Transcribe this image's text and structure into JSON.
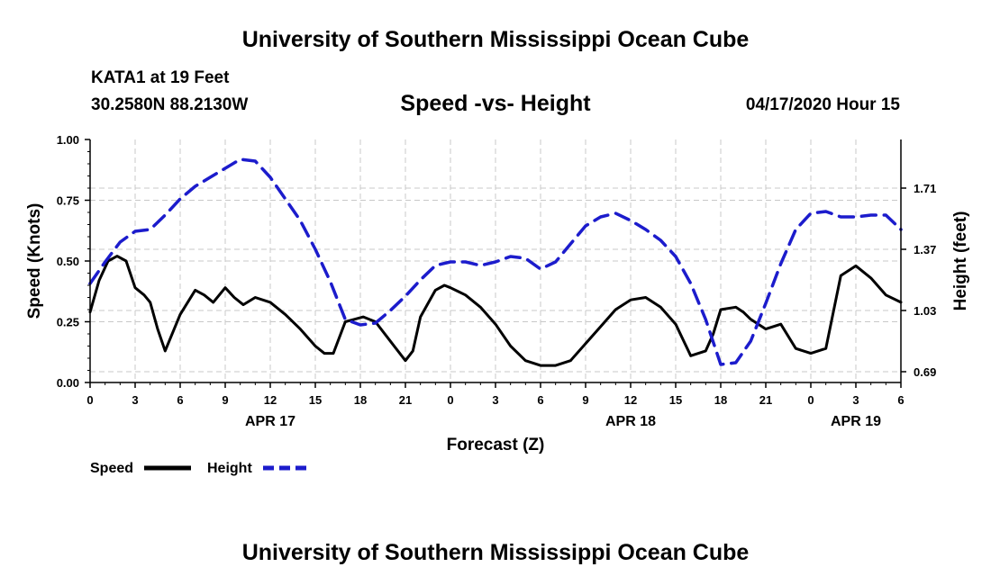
{
  "header": {
    "top_title": "University of Southern Mississippi Ocean Cube",
    "station": "KATA1 at 19 Feet",
    "coords": "30.2580N 88.2130W",
    "chart_title": "Speed -vs- Height",
    "run_time": "04/17/2020 Hour 15"
  },
  "footer": {
    "bottom_title": "University of Southern Mississippi Ocean Cube"
  },
  "chart_data": {
    "type": "line",
    "title": "Speed -vs- Height",
    "xlabel": "Forecast (Z)",
    "ylabel": "Speed (Knots)",
    "y2label": "Height (feet)",
    "x_unit": "forecast hours from APR 17 00Z",
    "xlim": [
      0,
      54
    ],
    "ylim": [
      0,
      1.0
    ],
    "y2lim": [
      0.63,
      1.98
    ],
    "x_ticks": [
      0,
      3,
      6,
      9,
      12,
      15,
      18,
      21,
      24,
      27,
      30,
      33,
      36,
      39,
      42,
      45,
      48,
      51,
      54
    ],
    "x_tick_labels": [
      "0",
      "3",
      "6",
      "9",
      "12",
      "15",
      "18",
      "21",
      "0",
      "3",
      "6",
      "9",
      "12",
      "15",
      "18",
      "21",
      "0",
      "3",
      "6"
    ],
    "y_ticks": [
      0,
      0.25,
      0.5,
      0.75,
      1.0
    ],
    "y_tick_labels": [
      "0.00",
      "0.25",
      "0.50",
      "0.75",
      "1.00"
    ],
    "y2_ticks": [
      0.69,
      1.03,
      1.37,
      1.71
    ],
    "y2_tick_labels": [
      "0.69",
      "1.03",
      "1.37",
      "1.71"
    ],
    "date_labels": [
      {
        "x": 12,
        "label": "APR 17"
      },
      {
        "x": 36,
        "label": "APR 18"
      },
      {
        "x": 51,
        "label": "APR 19"
      }
    ],
    "grid": true,
    "legend": "bottom-left",
    "series": [
      {
        "name": "Speed",
        "axis": "left",
        "color": "#000000",
        "style": "solid",
        "x": [
          0,
          0.6,
          1.2,
          1.8,
          2.4,
          3,
          3.6,
          4,
          4.5,
          5,
          6,
          7,
          7.6,
          8.2,
          9,
          9.6,
          10.2,
          11,
          12,
          13,
          14,
          15,
          15.6,
          16.2,
          17,
          17.6,
          18.2,
          19,
          20,
          21,
          21.5,
          22,
          23,
          23.6,
          24,
          25,
          26,
          27,
          28,
          29,
          30,
          31,
          32,
          33,
          34,
          35,
          36,
          37,
          38,
          39,
          40,
          41,
          41.5,
          42,
          43,
          43.5,
          44,
          45,
          46,
          47,
          48,
          49,
          50,
          51,
          52,
          53,
          54
        ],
        "values": [
          0.29,
          0.42,
          0.5,
          0.52,
          0.5,
          0.39,
          0.36,
          0.33,
          0.22,
          0.13,
          0.28,
          0.38,
          0.36,
          0.33,
          0.39,
          0.35,
          0.32,
          0.35,
          0.33,
          0.28,
          0.22,
          0.15,
          0.12,
          0.12,
          0.25,
          0.26,
          0.27,
          0.25,
          0.17,
          0.09,
          0.13,
          0.27,
          0.38,
          0.4,
          0.39,
          0.36,
          0.31,
          0.24,
          0.15,
          0.09,
          0.07,
          0.07,
          0.09,
          0.16,
          0.23,
          0.3,
          0.34,
          0.35,
          0.31,
          0.24,
          0.11,
          0.13,
          0.2,
          0.3,
          0.31,
          0.29,
          0.26,
          0.22,
          0.24,
          0.14,
          0.12,
          0.14,
          0.44,
          0.48,
          0.43,
          0.36,
          0.33
        ]
      },
      {
        "name": "Height",
        "axis": "right",
        "color": "#1c1ccc",
        "style": "dashed",
        "x": [
          0,
          1,
          2,
          3,
          4,
          5,
          6,
          7,
          8,
          9,
          10,
          11,
          12,
          13,
          14,
          15,
          16,
          17,
          18,
          19,
          20,
          21,
          22,
          23,
          24,
          25,
          26,
          27,
          28,
          29,
          30,
          31,
          32,
          33,
          34,
          35,
          36,
          37,
          38,
          39,
          40,
          41,
          42,
          43,
          44,
          45,
          46,
          47,
          48,
          49,
          50,
          51,
          52,
          53,
          54
        ],
        "values": [
          1.18,
          1.3,
          1.41,
          1.47,
          1.48,
          1.56,
          1.65,
          1.72,
          1.77,
          1.82,
          1.87,
          1.86,
          1.77,
          1.65,
          1.53,
          1.37,
          1.19,
          0.98,
          0.95,
          0.96,
          1.03,
          1.11,
          1.2,
          1.28,
          1.3,
          1.3,
          1.28,
          1.3,
          1.33,
          1.32,
          1.26,
          1.3,
          1.4,
          1.5,
          1.55,
          1.57,
          1.53,
          1.48,
          1.42,
          1.33,
          1.18,
          0.98,
          0.73,
          0.74,
          0.86,
          1.07,
          1.29,
          1.48,
          1.57,
          1.58,
          1.55,
          1.55,
          1.56,
          1.56,
          1.48
        ]
      }
    ]
  },
  "legend": {
    "speed_label": "Speed",
    "height_label": "Height"
  },
  "colors": {
    "speed": "#000000",
    "height": "#1c1ccc",
    "grid": "#c8c8c8"
  }
}
